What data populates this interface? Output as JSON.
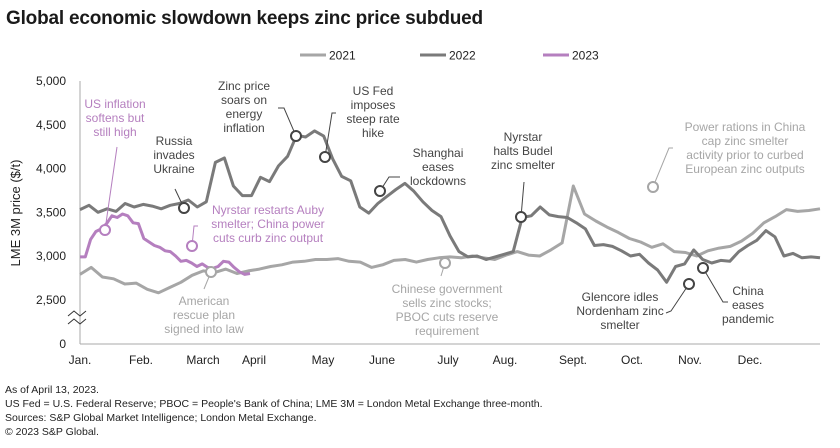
{
  "chart_data": {
    "type": "line",
    "title": "Global economic slowdown keeps zinc price subdued",
    "xlabel": "",
    "ylabel": "LME 3M price ($/t)",
    "ylim": [
      2000,
      5000
    ],
    "y_axis_break": true,
    "y_ticks": [
      {
        "value": 5000,
        "label": "5,000"
      },
      {
        "value": 4500,
        "label": "4,500"
      },
      {
        "value": 4000,
        "label": "4,000"
      },
      {
        "value": 3500,
        "label": "3,500"
      },
      {
        "value": 3000,
        "label": "3,000"
      },
      {
        "value": 2500,
        "label": "2,500"
      },
      {
        "value": 0,
        "label": "0"
      }
    ],
    "x_ticks": [
      "Jan.",
      "Feb.",
      "March",
      "April",
      "May",
      "June",
      "July",
      "Aug.",
      "Sept.",
      "Oct.",
      "Nov.",
      "Dec."
    ],
    "x_unit": "week of year",
    "grid": false,
    "legend": {
      "placement": "top-center",
      "entries": [
        "2021",
        "2022",
        "2023"
      ]
    },
    "series": [
      {
        "name": "2021",
        "color": "#a6a6a6",
        "values": [
          2790,
          2870,
          2760,
          2740,
          2680,
          2690,
          2620,
          2580,
          2640,
          2700,
          2780,
          2830,
          2810,
          2850,
          2800,
          2830,
          2850,
          2880,
          2900,
          2930,
          2940,
          2960,
          2960,
          2970,
          2940,
          2930,
          2870,
          2900,
          2950,
          2960,
          2930,
          2960,
          2980,
          2990,
          2980,
          3000,
          2980,
          2960,
          3010,
          3050,
          3010,
          3000,
          3070,
          3150,
          3800,
          3480,
          3400,
          3330,
          3270,
          3200,
          3160,
          3100,
          3140,
          3050,
          3040,
          3000,
          3060,
          3090,
          3110,
          3170,
          3260,
          3380,
          3450,
          3530,
          3510,
          3520,
          3540
        ]
      },
      {
        "name": "2022",
        "color": "#7a7a7a",
        "values": [
          3530,
          3580,
          3500,
          3540,
          3510,
          3600,
          3560,
          3590,
          3570,
          3540,
          3580,
          3600,
          3640,
          3560,
          3620,
          4070,
          4120,
          3800,
          3690,
          3690,
          3900,
          3850,
          4030,
          4140,
          4380,
          4360,
          4430,
          4370,
          4110,
          3910,
          3860,
          3560,
          3490,
          3600,
          3680,
          3760,
          3830,
          3740,
          3620,
          3520,
          3450,
          3230,
          3050,
          2990,
          3000,
          2960,
          2990,
          3020,
          3050,
          3440,
          3460,
          3560,
          3470,
          3450,
          3440,
          3380,
          3310,
          3120,
          3130,
          3110,
          3060,
          3000,
          3020,
          2920,
          2840,
          2700,
          2880,
          2910,
          3070,
          2960,
          2920,
          2950,
          2940,
          3050,
          3120,
          3180,
          3290,
          3220,
          3000,
          3030,
          2980,
          2990,
          2980
        ]
      },
      {
        "name": "2023",
        "color": "#b57fbf",
        "values": [
          2990,
          2990,
          3190,
          3280,
          3310,
          3370,
          3460,
          3440,
          3480,
          3460,
          3380,
          3370,
          3200,
          3160,
          3120,
          3100,
          3060,
          3050,
          3000,
          2940,
          2950,
          2920,
          2880,
          2910,
          2870,
          2860,
          2880,
          2940,
          2930,
          2870,
          2820,
          2790,
          2800
        ]
      }
    ],
    "annotations": [
      {
        "text": "US inflation softens but still high",
        "series": "2023",
        "month": "Jan.",
        "color": "#b57fbf"
      },
      {
        "text": "Russia invades Ukraine",
        "series": "2022",
        "month": "Feb.",
        "color": "#444444"
      },
      {
        "text": "Zinc price soars on energy inflation",
        "series": "2022",
        "month": "April",
        "color": "#444444"
      },
      {
        "text": "US Fed imposes steep rate hike",
        "series": "2022",
        "month": "May",
        "color": "#444444"
      },
      {
        "text": "Nyrstar restarts Auby smelter; China power cuts curb zinc output",
        "series": "2023",
        "month": "March",
        "color": "#b57fbf"
      },
      {
        "text": "American rescue plan signed into law",
        "series": "2021",
        "month": "March",
        "color": "#a6a6a6"
      },
      {
        "text": "Shanghai eases lockdowns",
        "series": "2022",
        "month": "June",
        "color": "#444444"
      },
      {
        "text": "Chinese government sells zinc stocks; PBOC cuts reserve requirement",
        "series": "2021",
        "month": "July",
        "color": "#a6a6a6"
      },
      {
        "text": "Nyrstar halts Budel zinc smelter",
        "series": "2022",
        "month": "Aug.",
        "color": "#444444"
      },
      {
        "text": "Power rations in China cap zinc smelter activity prior to curbed European zinc outputs",
        "series": "2021",
        "month": "Oct.",
        "color": "#a6a6a6"
      },
      {
        "text": "Glencore idles Nordenham zinc smelter",
        "series": "2022",
        "month": "Nov.",
        "color": "#444444"
      },
      {
        "text": "China eases pandemic",
        "series": "2022",
        "month": "Nov.",
        "color": "#444444"
      }
    ]
  },
  "footer": {
    "line1": "As of April 13, 2023.",
    "line2": "US Fed = U.S. Federal Reserve; PBOC = People's Bank of China; LME 3M = London Metal Exchange three-month.",
    "line3": "Sources: S&P Global Market Intelligence; London Metal Exchange.",
    "line4": "© 2023 S&P Global."
  }
}
